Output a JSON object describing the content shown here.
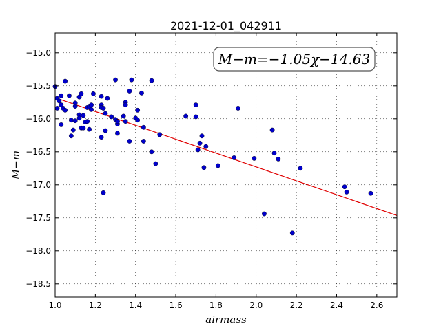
{
  "chart_data": {
    "type": "scatter",
    "title": "2021-12-01_042911",
    "xlabel": "airmass",
    "ylabel": "M−m",
    "xlim": [
      1.0,
      2.7
    ],
    "ylim": [
      -18.7,
      -14.7
    ],
    "y_inverted": true,
    "grid": true,
    "xticks": [
      1.0,
      1.2,
      1.4,
      1.6,
      1.8,
      2.0,
      2.2,
      2.4,
      2.6
    ],
    "xtick_labels": [
      "1.0",
      "1.2",
      "1.4",
      "1.6",
      "1.8",
      "2.0",
      "2.2",
      "2.4",
      "2.6"
    ],
    "yticks": [
      -15.0,
      -15.5,
      -16.0,
      -16.5,
      -17.0,
      -17.5,
      -18.0,
      -18.5
    ],
    "ytick_labels": [
      "−15.0",
      "−15.5",
      "−16.0",
      "−16.5",
      "−17.0",
      "−17.5",
      "−18.0",
      "−18.5"
    ],
    "annotation": "M−m=−1.05χ−14.63",
    "fit": {
      "slope": -1.05,
      "intercept": -14.63,
      "color": "#e00000"
    },
    "point_color": "#0000cc",
    "points": [
      [
        1.0,
        -15.51
      ],
      [
        1.01,
        -15.69
      ],
      [
        1.01,
        -15.84
      ],
      [
        1.02,
        -15.73
      ],
      [
        1.03,
        -15.79
      ],
      [
        1.03,
        -15.65
      ],
      [
        1.04,
        -15.84
      ],
      [
        1.05,
        -15.43
      ],
      [
        1.05,
        -15.87
      ],
      [
        1.03,
        -16.09
      ],
      [
        1.07,
        -15.65
      ],
      [
        1.08,
        -16.02
      ],
      [
        1.08,
        -16.26
      ],
      [
        1.09,
        -16.17
      ],
      [
        1.1,
        -15.81
      ],
      [
        1.1,
        -16.03
      ],
      [
        1.1,
        -15.76
      ],
      [
        1.12,
        -15.67
      ],
      [
        1.12,
        -15.94
      ],
      [
        1.12,
        -15.99
      ],
      [
        1.13,
        -16.14
      ],
      [
        1.13,
        -15.62
      ],
      [
        1.14,
        -16.14
      ],
      [
        1.14,
        -15.95
      ],
      [
        1.15,
        -16.05
      ],
      [
        1.16,
        -15.83
      ],
      [
        1.16,
        -16.04
      ],
      [
        1.17,
        -15.82
      ],
      [
        1.17,
        -16.16
      ],
      [
        1.18,
        -15.86
      ],
      [
        1.18,
        -15.79
      ],
      [
        1.19,
        -15.62
      ],
      [
        1.23,
        -15.66
      ],
      [
        1.23,
        -15.79
      ],
      [
        1.23,
        -15.83
      ],
      [
        1.23,
        -16.28
      ],
      [
        1.24,
        -15.84
      ],
      [
        1.25,
        -15.92
      ],
      [
        1.25,
        -16.18
      ],
      [
        1.26,
        -15.69
      ],
      [
        1.24,
        -17.12
      ],
      [
        1.28,
        -15.97
      ],
      [
        1.3,
        -15.41
      ],
      [
        1.3,
        -16.01
      ],
      [
        1.31,
        -16.22
      ],
      [
        1.31,
        -16.08
      ],
      [
        1.31,
        -16.04
      ],
      [
        1.34,
        -15.96
      ],
      [
        1.35,
        -15.75
      ],
      [
        1.35,
        -16.04
      ],
      [
        1.35,
        -15.79
      ],
      [
        1.37,
        -15.58
      ],
      [
        1.37,
        -16.34
      ],
      [
        1.38,
        -15.41
      ],
      [
        1.4,
        -15.99
      ],
      [
        1.41,
        -16.02
      ],
      [
        1.41,
        -15.87
      ],
      [
        1.43,
        -15.61
      ],
      [
        1.44,
        -16.13
      ],
      [
        1.44,
        -16.34
      ],
      [
        1.48,
        -15.42
      ],
      [
        1.48,
        -16.5
      ],
      [
        1.5,
        -16.68
      ],
      [
        1.52,
        -16.24
      ],
      [
        1.65,
        -15.96
      ],
      [
        1.7,
        -15.97
      ],
      [
        1.7,
        -15.79
      ],
      [
        1.71,
        -16.47
      ],
      [
        1.72,
        -16.37
      ],
      [
        1.73,
        -16.26
      ],
      [
        1.74,
        -16.74
      ],
      [
        1.75,
        -16.42
      ],
      [
        1.81,
        -16.71
      ],
      [
        1.89,
        -16.59
      ],
      [
        1.91,
        -15.84
      ],
      [
        1.99,
        -16.6
      ],
      [
        2.04,
        -17.44
      ],
      [
        2.08,
        -16.17
      ],
      [
        2.09,
        -16.52
      ],
      [
        2.11,
        -16.61
      ],
      [
        2.18,
        -17.73
      ],
      [
        2.22,
        -16.75
      ],
      [
        2.44,
        -17.03
      ],
      [
        2.45,
        -17.11
      ],
      [
        2.57,
        -17.13
      ]
    ]
  }
}
